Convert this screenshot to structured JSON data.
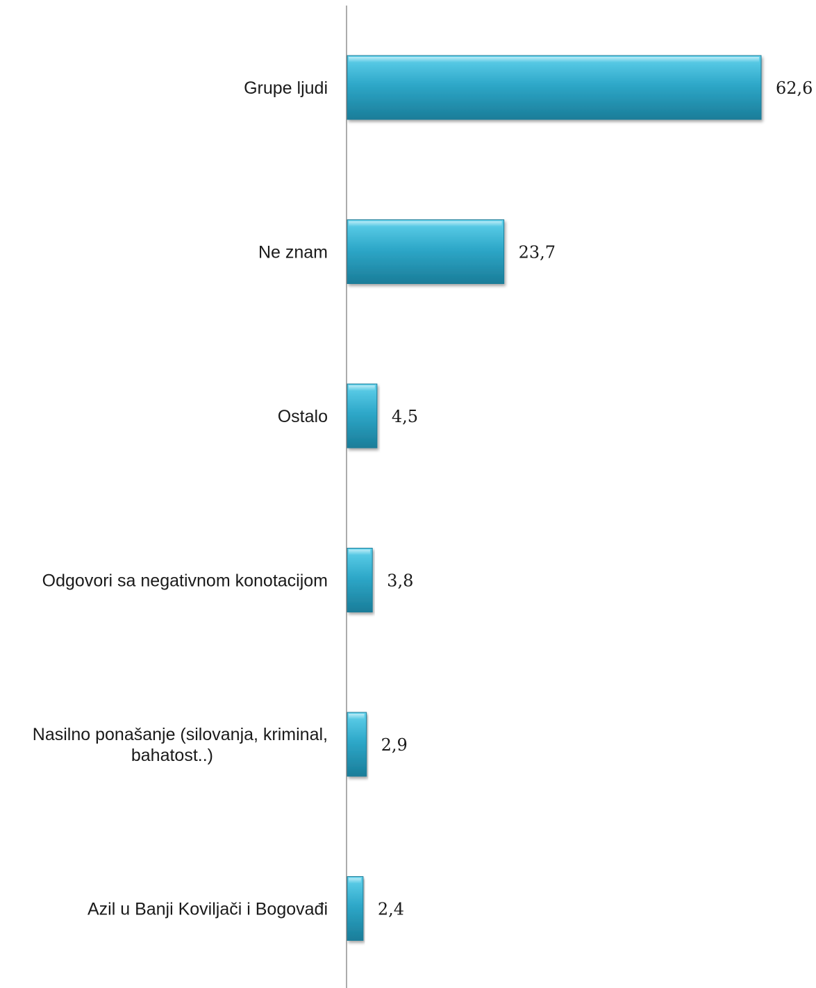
{
  "chart_data": {
    "type": "bar",
    "orientation": "horizontal",
    "categories": [
      "Grupe ljudi",
      "Ne znam",
      "Ostalo",
      "Odgovori sa negativnom konotacijom",
      "Nasilno ponašanje (silovanja, kriminal, bahatost..)",
      "Azil u Banji Koviljači i Bogovađi"
    ],
    "category_lines": [
      [
        "Grupe ljudi"
      ],
      [
        "Ne znam"
      ],
      [
        "Ostalo"
      ],
      [
        "Odgovori sa negativnom konotacijom"
      ],
      [
        "Nasilno ponašanje (silovanja, kriminal,",
        "bahatost..)"
      ],
      [
        "Azil u Banji Koviljači i Bogovađi"
      ]
    ],
    "values": [
      62.6,
      23.7,
      4.5,
      3.8,
      2.9,
      2.4
    ],
    "value_labels": [
      "62,6",
      "23,7",
      "4,5",
      "3,8",
      "2,9",
      "2,4"
    ],
    "xlim": [
      0,
      70
    ],
    "grid": false,
    "legend": "none",
    "bar_color": "#2ea8c9",
    "bar_color_light": "#62d2ec",
    "bar_color_dark": "#1a7d99",
    "axis_color": "#7f7f7f",
    "title": "",
    "xlabel": "",
    "ylabel": ""
  }
}
